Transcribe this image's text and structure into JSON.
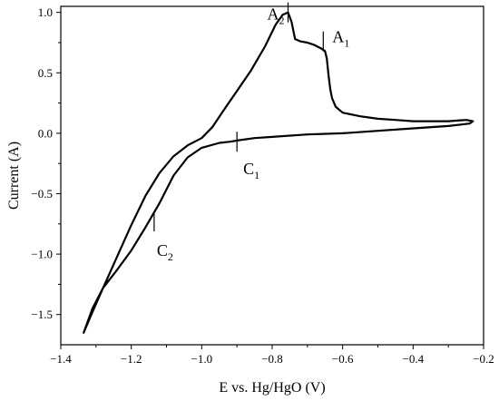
{
  "chart_data": {
    "type": "line",
    "title": "",
    "xlabel": "E vs. Hg/HgO (V)",
    "ylabel": "Current (A)",
    "xlim": [
      -1.4,
      -0.2
    ],
    "ylim": [
      -1.75,
      1.05
    ],
    "x_ticks": [
      -1.4,
      -1.2,
      -1.0,
      -0.8,
      -0.6,
      -0.4,
      -0.2
    ],
    "x_tick_labels": [
      "−1.4",
      "−1.2",
      "−1.0",
      "−0.8",
      "−0.6",
      "−0.4",
      "−0.2"
    ],
    "y_ticks": [
      1.0,
      0.5,
      0.0,
      -0.5,
      -1.0,
      -1.5
    ],
    "y_tick_labels": [
      "1.0",
      "0.5",
      "0.0",
      "−0.5",
      "−1.0",
      "−1.5"
    ],
    "grid": false,
    "legend": "none",
    "color": "#000000",
    "series": [
      {
        "x": [
          -1.335,
          -1.31,
          -1.28,
          -1.24,
          -1.2,
          -1.16,
          -1.12,
          -1.08,
          -1.04,
          -1.0,
          -0.97,
          -0.94,
          -0.9,
          -0.86,
          -0.82,
          -0.79,
          -0.77,
          -0.755,
          -0.745,
          -0.735,
          -0.72,
          -0.7,
          -0.68,
          -0.66,
          -0.65,
          -0.645,
          -0.64,
          -0.635,
          -0.63,
          -0.62,
          -0.6,
          -0.55,
          -0.5,
          -0.45,
          -0.4,
          -0.35,
          -0.3,
          -0.25,
          -0.23,
          -0.24,
          -0.3,
          -0.4,
          -0.5,
          -0.6,
          -0.7,
          -0.8,
          -0.85,
          -0.9,
          -0.92,
          -0.95,
          -1.0,
          -1.04,
          -1.08,
          -1.12,
          -1.16,
          -1.2,
          -1.24,
          -1.28,
          -1.31,
          -1.335
        ],
        "y": [
          -1.65,
          -1.48,
          -1.28,
          -1.02,
          -0.76,
          -0.52,
          -0.33,
          -0.19,
          -0.1,
          -0.04,
          0.05,
          0.18,
          0.35,
          0.52,
          0.72,
          0.9,
          0.98,
          1.0,
          0.92,
          0.78,
          0.76,
          0.75,
          0.73,
          0.7,
          0.68,
          0.62,
          0.48,
          0.36,
          0.29,
          0.22,
          0.17,
          0.14,
          0.12,
          0.11,
          0.1,
          0.1,
          0.1,
          0.11,
          0.1,
          0.08,
          0.06,
          0.04,
          0.02,
          0.0,
          -0.01,
          -0.03,
          -0.04,
          -0.06,
          -0.07,
          -0.08,
          -0.12,
          -0.2,
          -0.35,
          -0.58,
          -0.78,
          -0.97,
          -1.13,
          -1.28,
          -1.45,
          -1.65
        ]
      }
    ],
    "annotations": [
      {
        "label": "A",
        "sub": "1",
        "x": -0.655,
        "y": 0.76
      },
      {
        "label": "A",
        "sub": "2",
        "x": -0.755,
        "y": 1.0
      },
      {
        "label": "C",
        "sub": "1",
        "x": -0.9,
        "y": -0.07
      },
      {
        "label": "C",
        "sub": "2",
        "x": -1.135,
        "y": -0.73
      }
    ]
  }
}
